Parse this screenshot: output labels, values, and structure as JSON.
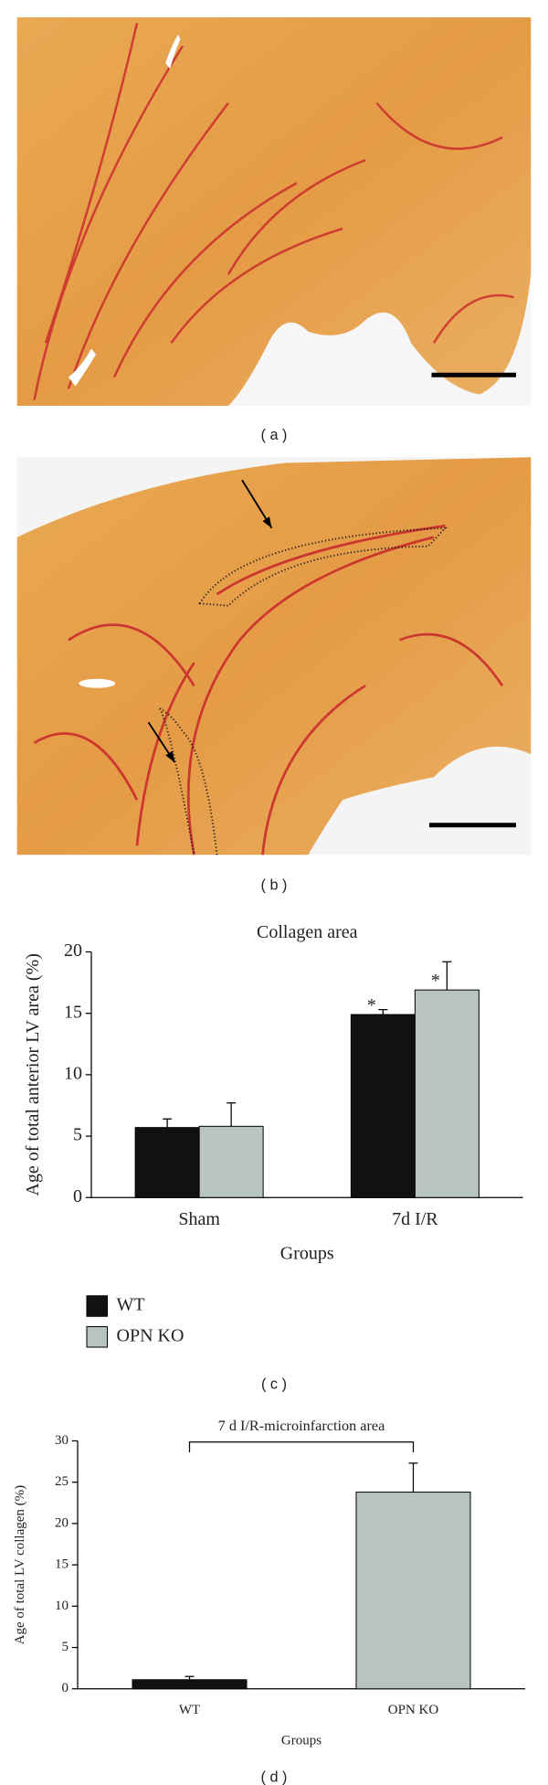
{
  "panels": [
    {
      "label": "( a )"
    },
    {
      "label": "( b )"
    }
  ],
  "chart_data": [
    {
      "type": "bar",
      "title": "Collagen area",
      "panel_label": "( c )",
      "x_label": "Groups",
      "y_label": "Age of total anterior LV area (%)",
      "categories": [
        "Sham",
        "7d I/R"
      ],
      "series": [
        {
          "name": "WT",
          "color": "#111111",
          "values": [
            5.7,
            14.9
          ],
          "errors": [
            0.7,
            0.4
          ],
          "significance": [
            null,
            "*"
          ]
        },
        {
          "name": "OPN KO",
          "color": "#b8c4c2",
          "values": [
            5.8,
            16.9
          ],
          "errors": [
            1.9,
            2.3
          ],
          "significance": [
            null,
            "*"
          ]
        }
      ],
      "ylim": [
        0,
        20
      ],
      "yticks": [
        0,
        5,
        10,
        15,
        20
      ],
      "grid": false,
      "legend": "bottom-left"
    },
    {
      "type": "bar",
      "panel_label": "( d )",
      "annotation": "7 d I/R-microinfarction area",
      "x_label": "Groups",
      "y_label": "Age of total LV collagen (%)",
      "categories": [
        "WT",
        "OPN KO"
      ],
      "values": [
        1.1,
        23.8
      ],
      "errors": [
        0.4,
        3.5
      ],
      "colors": [
        "#111111",
        "#b8c4c2"
      ],
      "ylim": [
        0,
        30
      ],
      "yticks": [
        0,
        5,
        10,
        15,
        20,
        25,
        30
      ],
      "grid": false
    }
  ]
}
